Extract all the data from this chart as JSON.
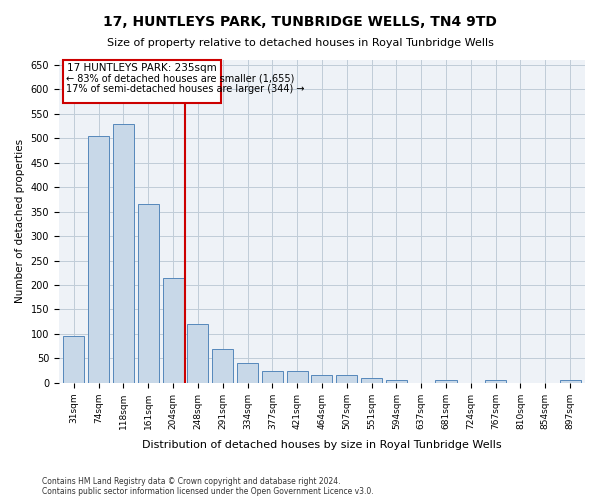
{
  "title": "17, HUNTLEYS PARK, TUNBRIDGE WELLS, TN4 9TD",
  "subtitle": "Size of property relative to detached houses in Royal Tunbridge Wells",
  "xlabel": "Distribution of detached houses by size in Royal Tunbridge Wells",
  "ylabel": "Number of detached properties",
  "footer1": "Contains HM Land Registry data © Crown copyright and database right 2024.",
  "footer2": "Contains public sector information licensed under the Open Government Licence v3.0.",
  "annotation_title": "17 HUNTLEYS PARK: 235sqm",
  "annotation_line2": "← 83% of detached houses are smaller (1,655)",
  "annotation_line3": "17% of semi-detached houses are larger (344) →",
  "bar_values": [
    95,
    505,
    530,
    365,
    215,
    120,
    70,
    40,
    25,
    25,
    15,
    15,
    10,
    5,
    0,
    5,
    0,
    5,
    0,
    0,
    5
  ],
  "bar_labels": [
    "31sqm",
    "74sqm",
    "118sqm",
    "161sqm",
    "204sqm",
    "248sqm",
    "291sqm",
    "334sqm",
    "377sqm",
    "421sqm",
    "464sqm",
    "507sqm",
    "551sqm",
    "594sqm",
    "637sqm",
    "681sqm",
    "724sqm",
    "767sqm",
    "810sqm",
    "854sqm",
    "897sqm"
  ],
  "bar_color": "#c8d8e8",
  "bar_edge_color": "#5588bb",
  "vline_x": 4.5,
  "vline_color": "#cc0000",
  "ylim": [
    0,
    660
  ],
  "yticks": [
    0,
    50,
    100,
    150,
    200,
    250,
    300,
    350,
    400,
    450,
    500,
    550,
    600,
    650
  ],
  "annotation_box_color": "#cc0000",
  "bg_color": "#eef2f7",
  "grid_color": "#c0ccd8"
}
